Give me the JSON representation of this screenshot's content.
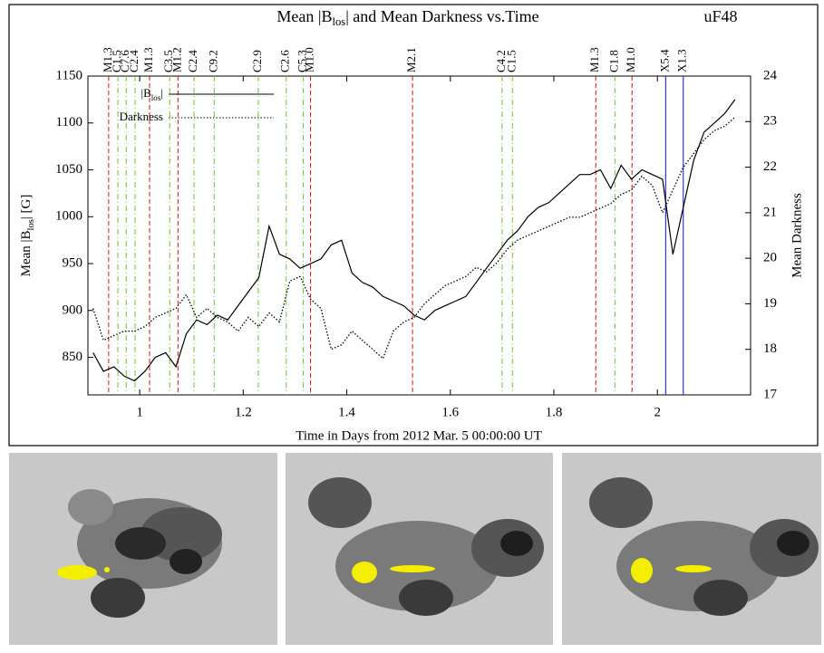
{
  "chart_data": {
    "type": "line",
    "title": [
      "Mean |B",
      "los",
      "| and Mean Darkness vs.Time"
    ],
    "annotation": "uF48",
    "x_label": "Time in Days from 2012 Mar. 5 00:00:00 UT",
    "y_label": [
      "Mean |B",
      "los",
      "| [G]"
    ],
    "y2_label": "Mean Darkness",
    "xlim": [
      0.9,
      2.18
    ],
    "xticks": [
      1,
      1.2,
      1.4,
      1.6,
      1.8,
      2
    ],
    "ylim": [
      810,
      1150
    ],
    "yticks": [
      850,
      900,
      950,
      1000,
      1050,
      1100,
      1150
    ],
    "y2lim": [
      17,
      24
    ],
    "y2ticks": [
      17,
      18,
      19,
      20,
      21,
      22,
      23,
      24
    ],
    "x": [
      0.91,
      0.93,
      0.95,
      0.97,
      0.99,
      1.01,
      1.03,
      1.05,
      1.07,
      1.09,
      1.11,
      1.13,
      1.15,
      1.17,
      1.19,
      1.21,
      1.23,
      1.25,
      1.27,
      1.29,
      1.31,
      1.33,
      1.35,
      1.37,
      1.39,
      1.41,
      1.43,
      1.45,
      1.47,
      1.49,
      1.51,
      1.53,
      1.55,
      1.57,
      1.59,
      1.61,
      1.63,
      1.65,
      1.67,
      1.69,
      1.71,
      1.73,
      1.75,
      1.77,
      1.79,
      1.81,
      1.83,
      1.85,
      1.87,
      1.89,
      1.91,
      1.93,
      1.95,
      1.97,
      1.99,
      2.01,
      2.03,
      2.05,
      2.07,
      2.09,
      2.11,
      2.13,
      2.15
    ],
    "series": [
      {
        "name": [
          "|B",
          "los",
          "|"
        ],
        "color": "#000000",
        "dash": "solid",
        "values": [
          855,
          835,
          840,
          830,
          825,
          835,
          850,
          855,
          840,
          875,
          890,
          885,
          895,
          890,
          905,
          920,
          935,
          990,
          960,
          955,
          945,
          950,
          955,
          970,
          975,
          940,
          930,
          925,
          915,
          910,
          905,
          895,
          890,
          900,
          905,
          910,
          915,
          930,
          945,
          960,
          975,
          985,
          1000,
          1010,
          1015,
          1025,
          1035,
          1045,
          1045,
          1050,
          1030,
          1055,
          1040,
          1050,
          1045,
          1040,
          960,
          1010,
          1060,
          1090,
          1100,
          1110,
          1125
        ]
      },
      {
        "name": "Darkness",
        "color": "#000000",
        "dash": "dotted",
        "axis": "y2",
        "values": [
          18.9,
          18.2,
          18.3,
          18.4,
          18.4,
          18.5,
          18.7,
          18.8,
          18.9,
          19.2,
          18.7,
          18.9,
          18.7,
          18.6,
          18.4,
          18.7,
          18.5,
          18.8,
          18.6,
          19.5,
          19.6,
          19.1,
          18.9,
          18.0,
          18.1,
          18.4,
          18.2,
          18.0,
          17.8,
          18.4,
          18.6,
          18.7,
          19.0,
          19.2,
          19.4,
          19.5,
          19.6,
          19.8,
          19.7,
          19.9,
          20.2,
          20.4,
          20.5,
          20.6,
          20.7,
          20.8,
          20.9,
          20.9,
          21.0,
          21.1,
          21.2,
          21.4,
          21.5,
          21.8,
          21.6,
          21.0,
          21.5,
          22.0,
          22.3,
          22.6,
          22.8,
          22.9,
          23.1
        ]
      }
    ],
    "flares": [
      {
        "x": 0.94,
        "label": "M1.3",
        "color": "#dd2222",
        "style": "dashed"
      },
      {
        "x": 0.958,
        "label": "C1.5",
        "color": "#77cc33",
        "style": "dashdot"
      },
      {
        "x": 0.974,
        "label": "C7.6",
        "color": "#77cc33",
        "style": "dashdot"
      },
      {
        "x": 0.991,
        "label": "C2.4",
        "color": "#77cc33",
        "style": "dashdot"
      },
      {
        "x": 1.019,
        "label": "M1.3",
        "color": "#dd2222",
        "style": "dashed"
      },
      {
        "x": 1.058,
        "label": "C3.5",
        "color": "#77cc33",
        "style": "dashdot"
      },
      {
        "x": 1.074,
        "label": "M1.2",
        "color": "#dd2222",
        "style": "dashed"
      },
      {
        "x": 1.105,
        "label": "C2.4",
        "color": "#77cc33",
        "style": "dashdot"
      },
      {
        "x": 1.144,
        "label": "C9.2",
        "color": "#77cc33",
        "style": "dashdot"
      },
      {
        "x": 1.229,
        "label": "C2.9",
        "color": "#77cc33",
        "style": "dashdot"
      },
      {
        "x": 1.283,
        "label": "C2.6",
        "color": "#77cc33",
        "style": "dashdot"
      },
      {
        "x": 1.316,
        "label": "C5.3",
        "color": "#77cc33",
        "style": "dashdot"
      },
      {
        "x": 1.33,
        "label": "M1.0",
        "color": "#dd2222",
        "style": "dashed"
      },
      {
        "x": 1.527,
        "label": "M2.1",
        "color": "#dd2222",
        "style": "dashed"
      },
      {
        "x": 1.7,
        "label": "C4.2",
        "color": "#77cc33",
        "style": "dashdot"
      },
      {
        "x": 1.72,
        "label": "C1.5",
        "color": "#77cc33",
        "style": "dashdot"
      },
      {
        "x": 1.881,
        "label": "M1.3",
        "color": "#dd2222",
        "style": "dashed"
      },
      {
        "x": 1.918,
        "label": "C1.8",
        "color": "#77cc33",
        "style": "dashdot"
      },
      {
        "x": 1.951,
        "label": "M1.0",
        "color": "#dd2222",
        "style": "dashed"
      },
      {
        "x": 2.016,
        "label": "X5.4",
        "color": "#2222dd",
        "style": "solid"
      },
      {
        "x": 2.05,
        "label": "X1.3",
        "color": "#2222dd",
        "style": "solid"
      }
    ]
  }
}
